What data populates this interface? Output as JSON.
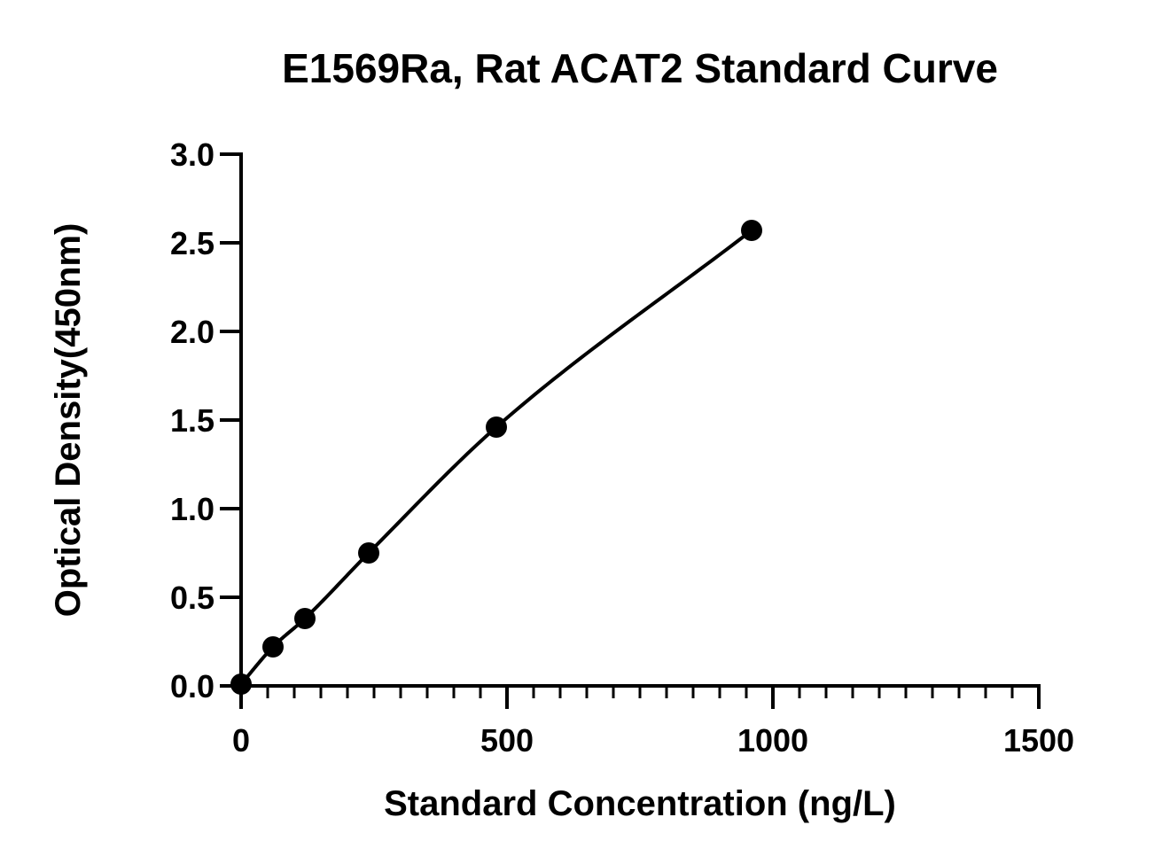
{
  "chart_data": {
    "type": "scatter",
    "title": "E1569Ra, Rat ACAT2 Standard Curve",
    "xlabel": "Standard Concentration (ng/L)",
    "ylabel": "Optical Density(450nm)",
    "xlim": [
      0,
      1500
    ],
    "ylim": [
      0,
      3.0
    ],
    "x_major_ticks": [
      0,
      500,
      1000,
      1500
    ],
    "x_tick_labels": [
      "0",
      "500",
      "1000",
      "1500"
    ],
    "x_minor_step": 50,
    "y_major_ticks": [
      0,
      0.5,
      1.0,
      1.5,
      2.0,
      2.5,
      3.0
    ],
    "y_tick_labels": [
      "0.0",
      "0.5",
      "1.0",
      "1.5",
      "2.0",
      "2.5",
      "3.0"
    ],
    "grid": false,
    "legend": "none",
    "series": [
      {
        "x": [
          0,
          60,
          120,
          240,
          480,
          960
        ],
        "y": [
          0.01,
          0.22,
          0.38,
          0.75,
          1.46,
          2.57
        ],
        "fit": "smooth-curve",
        "color": "#000000"
      }
    ]
  }
}
